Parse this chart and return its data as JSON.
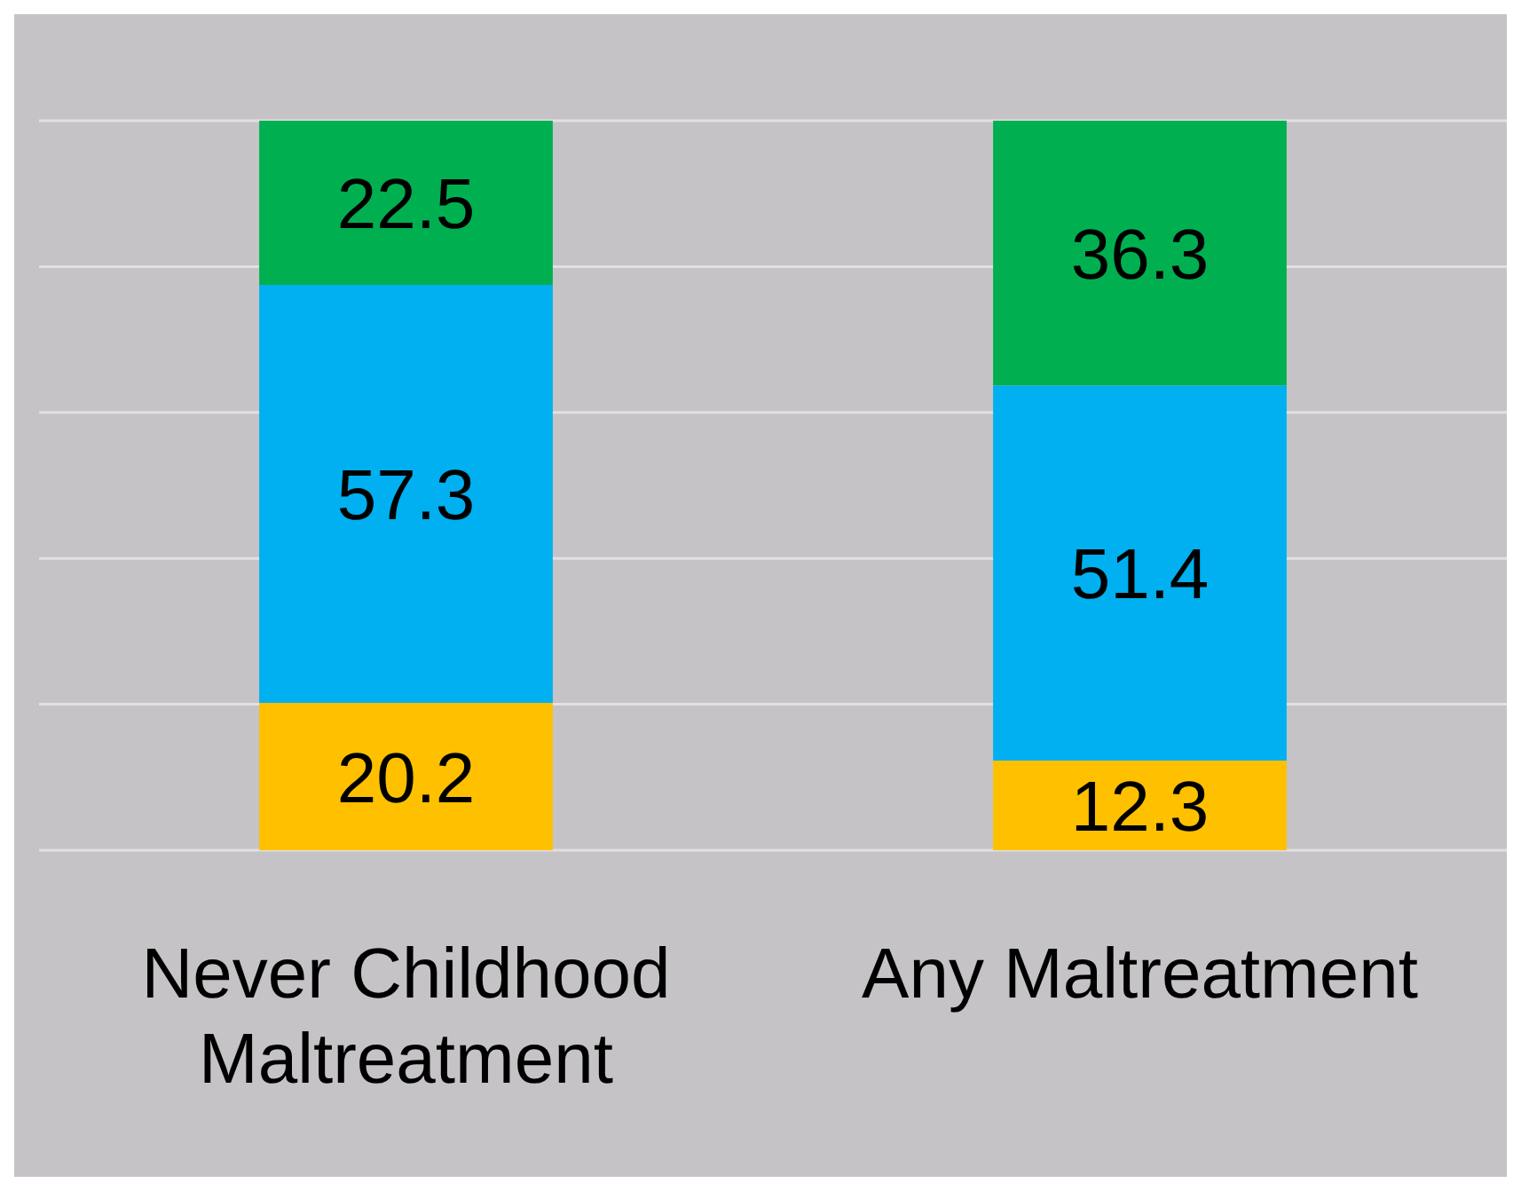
{
  "chart_data": {
    "type": "bar",
    "stacked": true,
    "categories": [
      "Never Childhood Maltreatment",
      "Any Maltreatment"
    ],
    "series": [
      {
        "color": "#ffc000",
        "values": [
          20.2,
          12.3
        ]
      },
      {
        "color": "#00b0f0",
        "values": [
          57.3,
          51.4
        ]
      },
      {
        "color": "#00b050",
        "values": [
          22.5,
          36.3
        ]
      }
    ],
    "tick_labels": "x",
    "grid": "y",
    "data_labels": true,
    "legend": false
  }
}
